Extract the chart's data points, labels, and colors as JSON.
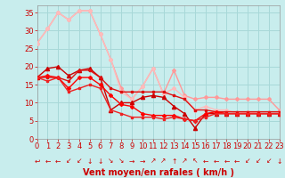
{
  "xlabel": "Vent moyen/en rafales ( km/h )",
  "xlim": [
    0,
    23
  ],
  "ylim": [
    0,
    37
  ],
  "yticks": [
    0,
    5,
    10,
    15,
    20,
    25,
    30,
    35
  ],
  "xticks": [
    0,
    1,
    2,
    3,
    4,
    5,
    6,
    7,
    8,
    9,
    10,
    11,
    12,
    13,
    14,
    15,
    16,
    17,
    18,
    19,
    20,
    21,
    22,
    23
  ],
  "background_color": "#c8eded",
  "grid_color": "#a8d8d8",
  "lines": [
    {
      "x": [
        0,
        1,
        2,
        3,
        4,
        5,
        6,
        7,
        8,
        9,
        10,
        11,
        12,
        13,
        14,
        15,
        16,
        17,
        18,
        19,
        20,
        21,
        22,
        23
      ],
      "y": [
        26.5,
        30.5,
        35,
        33,
        35.5,
        35.5,
        29,
        22,
        14,
        11,
        14.5,
        19.5,
        12.5,
        19,
        12,
        11,
        11.5,
        11.5,
        11,
        11,
        11,
        11,
        11,
        8
      ],
      "color": "#ff9999",
      "lw": 1.0,
      "marker": "D",
      "ms": 2.0
    },
    {
      "x": [
        0,
        1,
        2,
        3,
        4,
        5,
        6,
        7,
        8,
        9,
        10,
        11,
        12,
        13,
        14,
        15,
        16,
        17,
        18,
        19,
        20,
        21,
        22,
        23
      ],
      "y": [
        26.5,
        30.5,
        35,
        33,
        35.5,
        35.5,
        29,
        22,
        13,
        11,
        14.5,
        19.5,
        12.5,
        14,
        11.5,
        8,
        9,
        8,
        8,
        7,
        7.5,
        7,
        7,
        7
      ],
      "color": "#ffbbbb",
      "lw": 1.0,
      "marker": "D",
      "ms": 2.0
    },
    {
      "x": [
        0,
        1,
        2,
        3,
        4,
        5,
        6,
        7,
        8,
        9,
        10,
        11,
        12,
        13,
        14,
        15,
        16,
        17,
        18,
        19,
        20,
        21,
        22,
        23
      ],
      "y": [
        17,
        19.5,
        20,
        17.5,
        19,
        19.5,
        17,
        8,
        10,
        10,
        11.5,
        12,
        11.5,
        9,
        7,
        3,
        7,
        7,
        7,
        7,
        7,
        7,
        7,
        7
      ],
      "color": "#cc0000",
      "lw": 1.0,
      "marker": "^",
      "ms": 3.0
    },
    {
      "x": [
        0,
        1,
        2,
        3,
        4,
        5,
        6,
        7,
        8,
        9,
        10,
        11,
        12,
        13,
        14,
        15,
        16,
        17,
        18,
        19,
        20,
        21,
        22,
        23
      ],
      "y": [
        17,
        17,
        17,
        16,
        19,
        19,
        17,
        14,
        13,
        13,
        13,
        13,
        13,
        12,
        11,
        8,
        8,
        7.5,
        7.5,
        7.5,
        7.5,
        7.5,
        7.5,
        7.5
      ],
      "color": "#dd1111",
      "lw": 1.0,
      "marker": "s",
      "ms": 2.0
    },
    {
      "x": [
        0,
        1,
        2,
        3,
        4,
        5,
        6,
        7,
        8,
        9,
        10,
        11,
        12,
        13,
        14,
        15,
        16,
        17,
        18,
        19,
        20,
        21,
        22,
        23
      ],
      "y": [
        17,
        17.5,
        17,
        14,
        17,
        17,
        15,
        12,
        9.5,
        9,
        7,
        6.5,
        6.5,
        6.5,
        5.5,
        5,
        7,
        7.5,
        7,
        7,
        7,
        7,
        7,
        7
      ],
      "color": "#ff0000",
      "lw": 1.0,
      "marker": "D",
      "ms": 2.0
    },
    {
      "x": [
        0,
        1,
        2,
        3,
        4,
        5,
        6,
        7,
        8,
        9,
        10,
        11,
        12,
        13,
        14,
        15,
        16,
        17,
        18,
        19,
        20,
        21,
        22,
        23
      ],
      "y": [
        17,
        16,
        17,
        13,
        14,
        15,
        14,
        8,
        7,
        6,
        6,
        6,
        5.5,
        6,
        5.5,
        5,
        6,
        7,
        7,
        7,
        7,
        7,
        7,
        7
      ],
      "color": "#ee2222",
      "lw": 1.0,
      "marker": "s",
      "ms": 2.0
    }
  ],
  "arrows": [
    "↩",
    "←",
    "←",
    "↙",
    "↙",
    "↓",
    "↓",
    "↘",
    "↘",
    "→",
    "→",
    "↗",
    "↗",
    "↑",
    "↗",
    "↖",
    "←",
    "←",
    "←",
    "←",
    "↙",
    "↙",
    "↙",
    "↓"
  ],
  "xlabel_fontsize": 7,
  "tick_fontsize": 6,
  "tick_color": "#cc0000",
  "xlabel_color": "#cc0000"
}
